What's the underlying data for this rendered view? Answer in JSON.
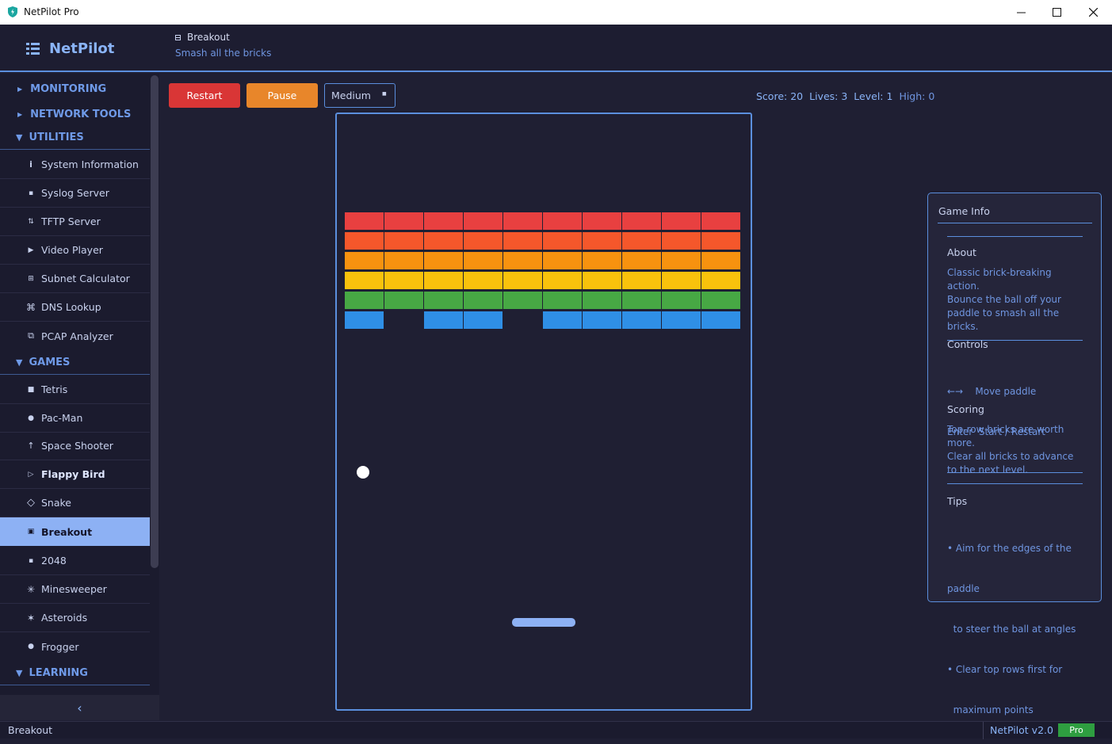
{
  "window": {
    "title": "NetPilot Pro"
  },
  "header": {
    "brand": "NetPilot",
    "page_title": "Breakout",
    "page_subtitle": "Smash all the bricks"
  },
  "sidebar": {
    "sections": {
      "monitoring": "MONITORING",
      "network_tools": "NETWORK TOOLS",
      "utilities": "UTILITIES",
      "games": "GAMES",
      "learning": "LEARNING"
    },
    "utilities_items": [
      {
        "label": "System Information",
        "icon": "info-icon"
      },
      {
        "label": "Syslog Server",
        "icon": "square-icon"
      },
      {
        "label": "TFTP Server",
        "icon": "transfer-icon"
      },
      {
        "label": "Video Player",
        "icon": "play-icon"
      },
      {
        "label": "Subnet Calculator",
        "icon": "grid-icon"
      },
      {
        "label": "DNS Lookup",
        "icon": "command-icon"
      },
      {
        "label": "PCAP Analyzer",
        "icon": "copy-icon"
      }
    ],
    "games_items": [
      {
        "label": "Tetris",
        "icon": "block-icon"
      },
      {
        "label": "Pac-Man",
        "icon": "dot-icon"
      },
      {
        "label": "Space Shooter",
        "icon": "arrow-up-icon"
      },
      {
        "label": "Flappy Bird",
        "icon": "play-icon"
      },
      {
        "label": "Snake",
        "icon": "diamond-icon"
      },
      {
        "label": "Breakout",
        "icon": "brick-icon"
      },
      {
        "label": "2048",
        "icon": "square-icon"
      },
      {
        "label": "Minesweeper",
        "icon": "mine-icon"
      },
      {
        "label": "Asteroids",
        "icon": "star-icon"
      },
      {
        "label": "Frogger",
        "icon": "frog-icon"
      }
    ],
    "collapse_glyph": "‹"
  },
  "toolbar": {
    "restart_label": "Restart",
    "pause_label": "Pause",
    "difficulty_value": "Medium",
    "score_label": "Score: 20",
    "lives_label": "Lives: 3",
    "level_label": "Level: 1",
    "high_label": "High: 0"
  },
  "game": {
    "brick_rows": [
      {
        "color": "#e84040",
        "present": [
          1,
          1,
          1,
          1,
          1,
          1,
          1,
          1,
          1,
          1
        ]
      },
      {
        "color": "#f5572b",
        "present": [
          1,
          1,
          1,
          1,
          1,
          1,
          1,
          1,
          1,
          1
        ]
      },
      {
        "color": "#f7920f",
        "present": [
          1,
          1,
          1,
          1,
          1,
          1,
          1,
          1,
          1,
          1
        ]
      },
      {
        "color": "#f9c20c",
        "present": [
          1,
          1,
          1,
          1,
          1,
          1,
          1,
          1,
          1,
          1
        ]
      },
      {
        "color": "#47a844",
        "present": [
          1,
          1,
          1,
          1,
          1,
          1,
          1,
          1,
          1,
          1
        ]
      },
      {
        "color": "#2f8fe6",
        "present": [
          1,
          0,
          1,
          1,
          0,
          1,
          1,
          1,
          1,
          1
        ]
      }
    ]
  },
  "info_panel": {
    "title": "Game Info",
    "about_heading": "About",
    "about_lines": [
      "Classic brick-breaking action.",
      "Bounce the ball off your",
      "paddle to smash all the",
      "bricks."
    ],
    "controls_heading": "Controls",
    "controls_lines": [
      "←→    Move paddle",
      "Enter  Start / Restart"
    ],
    "scoring_heading": "Scoring",
    "scoring_lines": [
      "Top-row bricks are worth",
      "more.",
      "Clear all bricks to advance",
      "to the next level."
    ],
    "tips_heading": "Tips",
    "tips_lines": [
      "• Aim for the edges of the",
      "paddle",
      "  to steer the ball at angles",
      "• Clear top rows first for",
      "  maximum points"
    ]
  },
  "statusbar": {
    "left": "Breakout",
    "version": "NetPilot v2.0",
    "badge": "Pro"
  },
  "colors": {
    "accent": "#5b8fde",
    "active": "#8db1f4",
    "restart": "#d93636",
    "pause": "#e8862a",
    "badge": "#2e9e40"
  }
}
